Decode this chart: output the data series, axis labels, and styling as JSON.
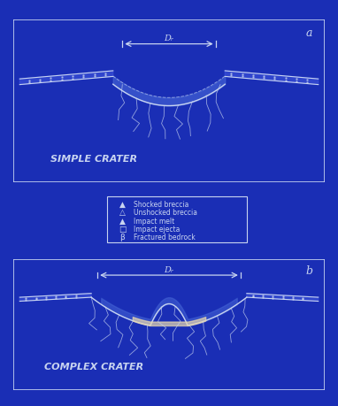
{
  "bg_color": "#1a2eb5",
  "line_color": "#c8d4f0",
  "fill_color": "#2a3ec5",
  "ejecta_color": "#3a50d0",
  "breccia_color": "#4060c8",
  "melt_color": "#f0e8d0",
  "title_simple": "SIMPLE CRATER",
  "title_complex": "COMPLEX CRATER",
  "label_a": "a",
  "label_b": "b",
  "dim_label": "Dᵣ",
  "legend_items": [
    "▲  Shocked breccia",
    "△  Unshocked breccia",
    "▲  Impact melt",
    "□  Impact ejecta",
    "βₜ  Fractured bedrock"
  ],
  "legend_symbols": [
    "▲",
    "△",
    "▲",
    "□",
    "β"
  ],
  "legend_texts": [
    "Shocked breccia",
    "Unshocked breccia",
    "Impact melt",
    "Impact ejecta",
    "Fractured bedrock"
  ],
  "legend_colors": [
    "#c8d4f0",
    "#c8d4f0",
    "#c8d4f0",
    "#c8d4f0",
    "#c8d4f0"
  ]
}
